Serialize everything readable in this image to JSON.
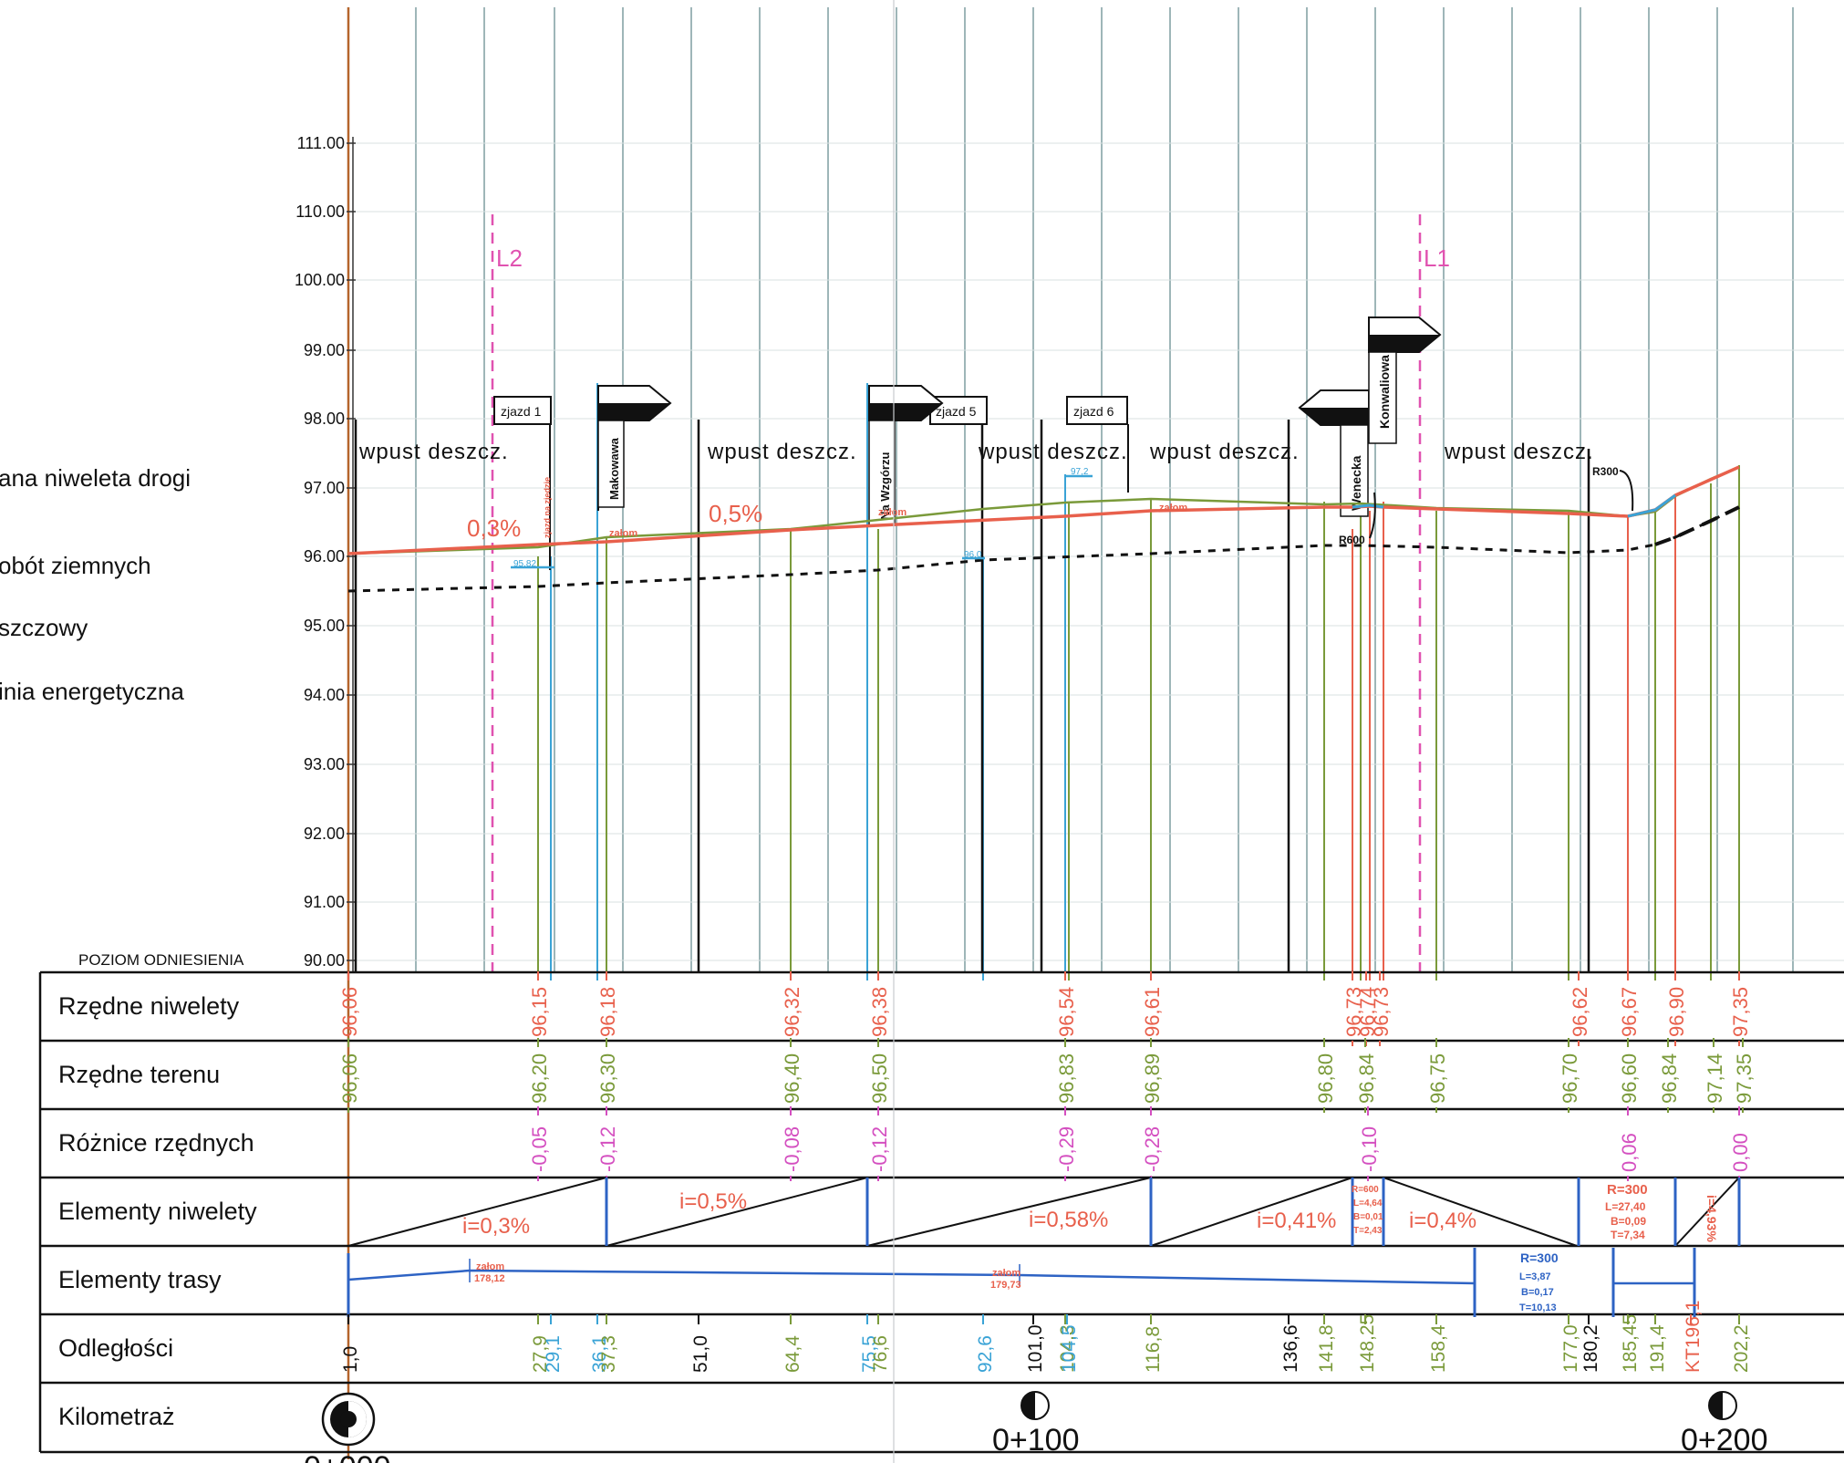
{
  "legend": [
    "ana niweleta drogi",
    "obót ziemnych",
    "szczowy",
    "inia energetyczna"
  ],
  "poziom_label": "POZIOM ODNIESIENIA",
  "y_axis_labels": [
    "90.00",
    "91.00",
    "92.00",
    "93.00",
    "94.00",
    "95.00",
    "96.00",
    "97.00",
    "98.00",
    "99.00",
    "100.00",
    "110.00",
    "111.00"
  ],
  "rows": [
    {
      "label": "Rzędne niwelety"
    },
    {
      "label": "Rzędne terenu"
    },
    {
      "label": "Różnice rzędnych"
    },
    {
      "label": "Elementy niwelety"
    },
    {
      "label": "Elementy trasy"
    },
    {
      "label": "Odległości"
    },
    {
      "label": "Kilometraż"
    }
  ],
  "niweleta_values": [
    {
      "v": "96,06",
      "c": "#e8604c"
    },
    {
      "v": "96,15",
      "c": "#e8604c"
    },
    {
      "v": "96,18",
      "c": "#e8604c"
    },
    {
      "v": "96,32",
      "c": "#e8604c"
    },
    {
      "v": "96,38",
      "c": "#e8604c"
    },
    {
      "v": "96,54",
      "c": "#e8604c"
    },
    {
      "v": "96,61",
      "c": "#e8604c"
    },
    {
      "v": "96,73",
      "c": "#e8604c"
    },
    {
      "v": "96,74",
      "c": "#e8604c"
    },
    {
      "v": "96,73",
      "c": "#e8604c"
    },
    {
      "v": "96,62",
      "c": "#e8604c"
    },
    {
      "v": "96,67",
      "c": "#e8604c"
    },
    {
      "v": "96,90",
      "c": "#e8604c"
    },
    {
      "v": "97,35",
      "c": "#e8604c"
    }
  ],
  "teren_values": [
    {
      "v": "96,06"
    },
    {
      "v": "96,20"
    },
    {
      "v": "96,30"
    },
    {
      "v": "96,40"
    },
    {
      "v": "96,50"
    },
    {
      "v": "96,83"
    },
    {
      "v": "96,89"
    },
    {
      "v": "96,80"
    },
    {
      "v": "96,84"
    },
    {
      "v": "96,75"
    },
    {
      "v": "96,70"
    },
    {
      "v": "96,60"
    },
    {
      "v": "96,84"
    },
    {
      "v": "97,14"
    },
    {
      "v": "97,35"
    }
  ],
  "roznice_values": [
    "-0,05",
    "-0,12",
    "-0,08",
    "-0,12",
    "-0,29",
    "-0,28",
    "-0,10",
    "0,06",
    "0,00"
  ],
  "gradients": [
    "i=0,3%",
    "i=0,5%",
    "i=0,58%",
    "i=0,41%",
    "i=0,4%",
    "i=4,93%"
  ],
  "vcurve_a": [
    "R=600",
    "L=4,64",
    "B=0,01",
    "T=2,43"
  ],
  "vcurve_b": [
    "R=300",
    "L=27,40",
    "B=0,09",
    "T=7,34"
  ],
  "hcurve": [
    "R=300",
    "L=3,87",
    "B=0,17",
    "T=10,13"
  ],
  "zalom_labels": [
    {
      "t": "załom",
      "v": "178,12"
    },
    {
      "t": "załom",
      "v": "179,73"
    }
  ],
  "odleglosci": [
    {
      "v": "1,0",
      "c": "#111"
    },
    {
      "v": "27,9",
      "c": "#7a9a3a"
    },
    {
      "v": "29,1",
      "c": "#3aa3d6"
    },
    {
      "v": "36,1",
      "c": "#3aa3d6"
    },
    {
      "v": "37,3",
      "c": "#7a9a3a"
    },
    {
      "v": "51,0",
      "c": "#111"
    },
    {
      "v": "64,4",
      "c": "#7a9a3a"
    },
    {
      "v": "75,5",
      "c": "#3aa3d6"
    },
    {
      "v": "76,6",
      "c": "#7a9a3a"
    },
    {
      "v": "92,6",
      "c": "#3aa3d6"
    },
    {
      "v": "101,0",
      "c": "#111"
    },
    {
      "v": "104,3",
      "c": "#7a9a3a"
    },
    {
      "v": "104,5",
      "c": "#3aa3d6"
    },
    {
      "v": "116,8",
      "c": "#7a9a3a"
    },
    {
      "v": "136,6",
      "c": "#111"
    },
    {
      "v": "141,8",
      "c": "#7a9a3a"
    },
    {
      "v": "148,25",
      "c": "#7a9a3a"
    },
    {
      "v": "158,4",
      "c": "#7a9a3a"
    },
    {
      "v": "177,0",
      "c": "#7a9a3a"
    },
    {
      "v": "180,2",
      "c": "#111"
    },
    {
      "v": "185,45",
      "c": "#7a9a3a"
    },
    {
      "v": "191,4",
      "c": "#7a9a3a"
    },
    {
      "v": "KT196,1",
      "c": "#e8604c"
    },
    {
      "v": "202,2",
      "c": "#7a9a3a"
    }
  ],
  "kilometraz": [
    "0+000",
    "0+100",
    "0+200"
  ],
  "annotations": {
    "wpust": "wpust deszcz.",
    "grade_a": "0,3%",
    "grade_b": "0,5%",
    "L2": "L2",
    "L1": "L1",
    "zjazd1": "zjazd 1",
    "zjazd5": "zjazd 5",
    "zjazd6": "zjazd 6",
    "makowawa": "Makowawa",
    "wzgorzu": "Na Wzgórzu",
    "wenecka": "Wenecka",
    "konwaliowa": "Konwaliowa",
    "r600": "R600",
    "r300": "R300",
    "zalom": "załom",
    "elev_a": "95,82",
    "elev_b": "97,2",
    "elev_c": "96,0",
    "zjazd_note": "zjazd na zjedzie"
  }
}
